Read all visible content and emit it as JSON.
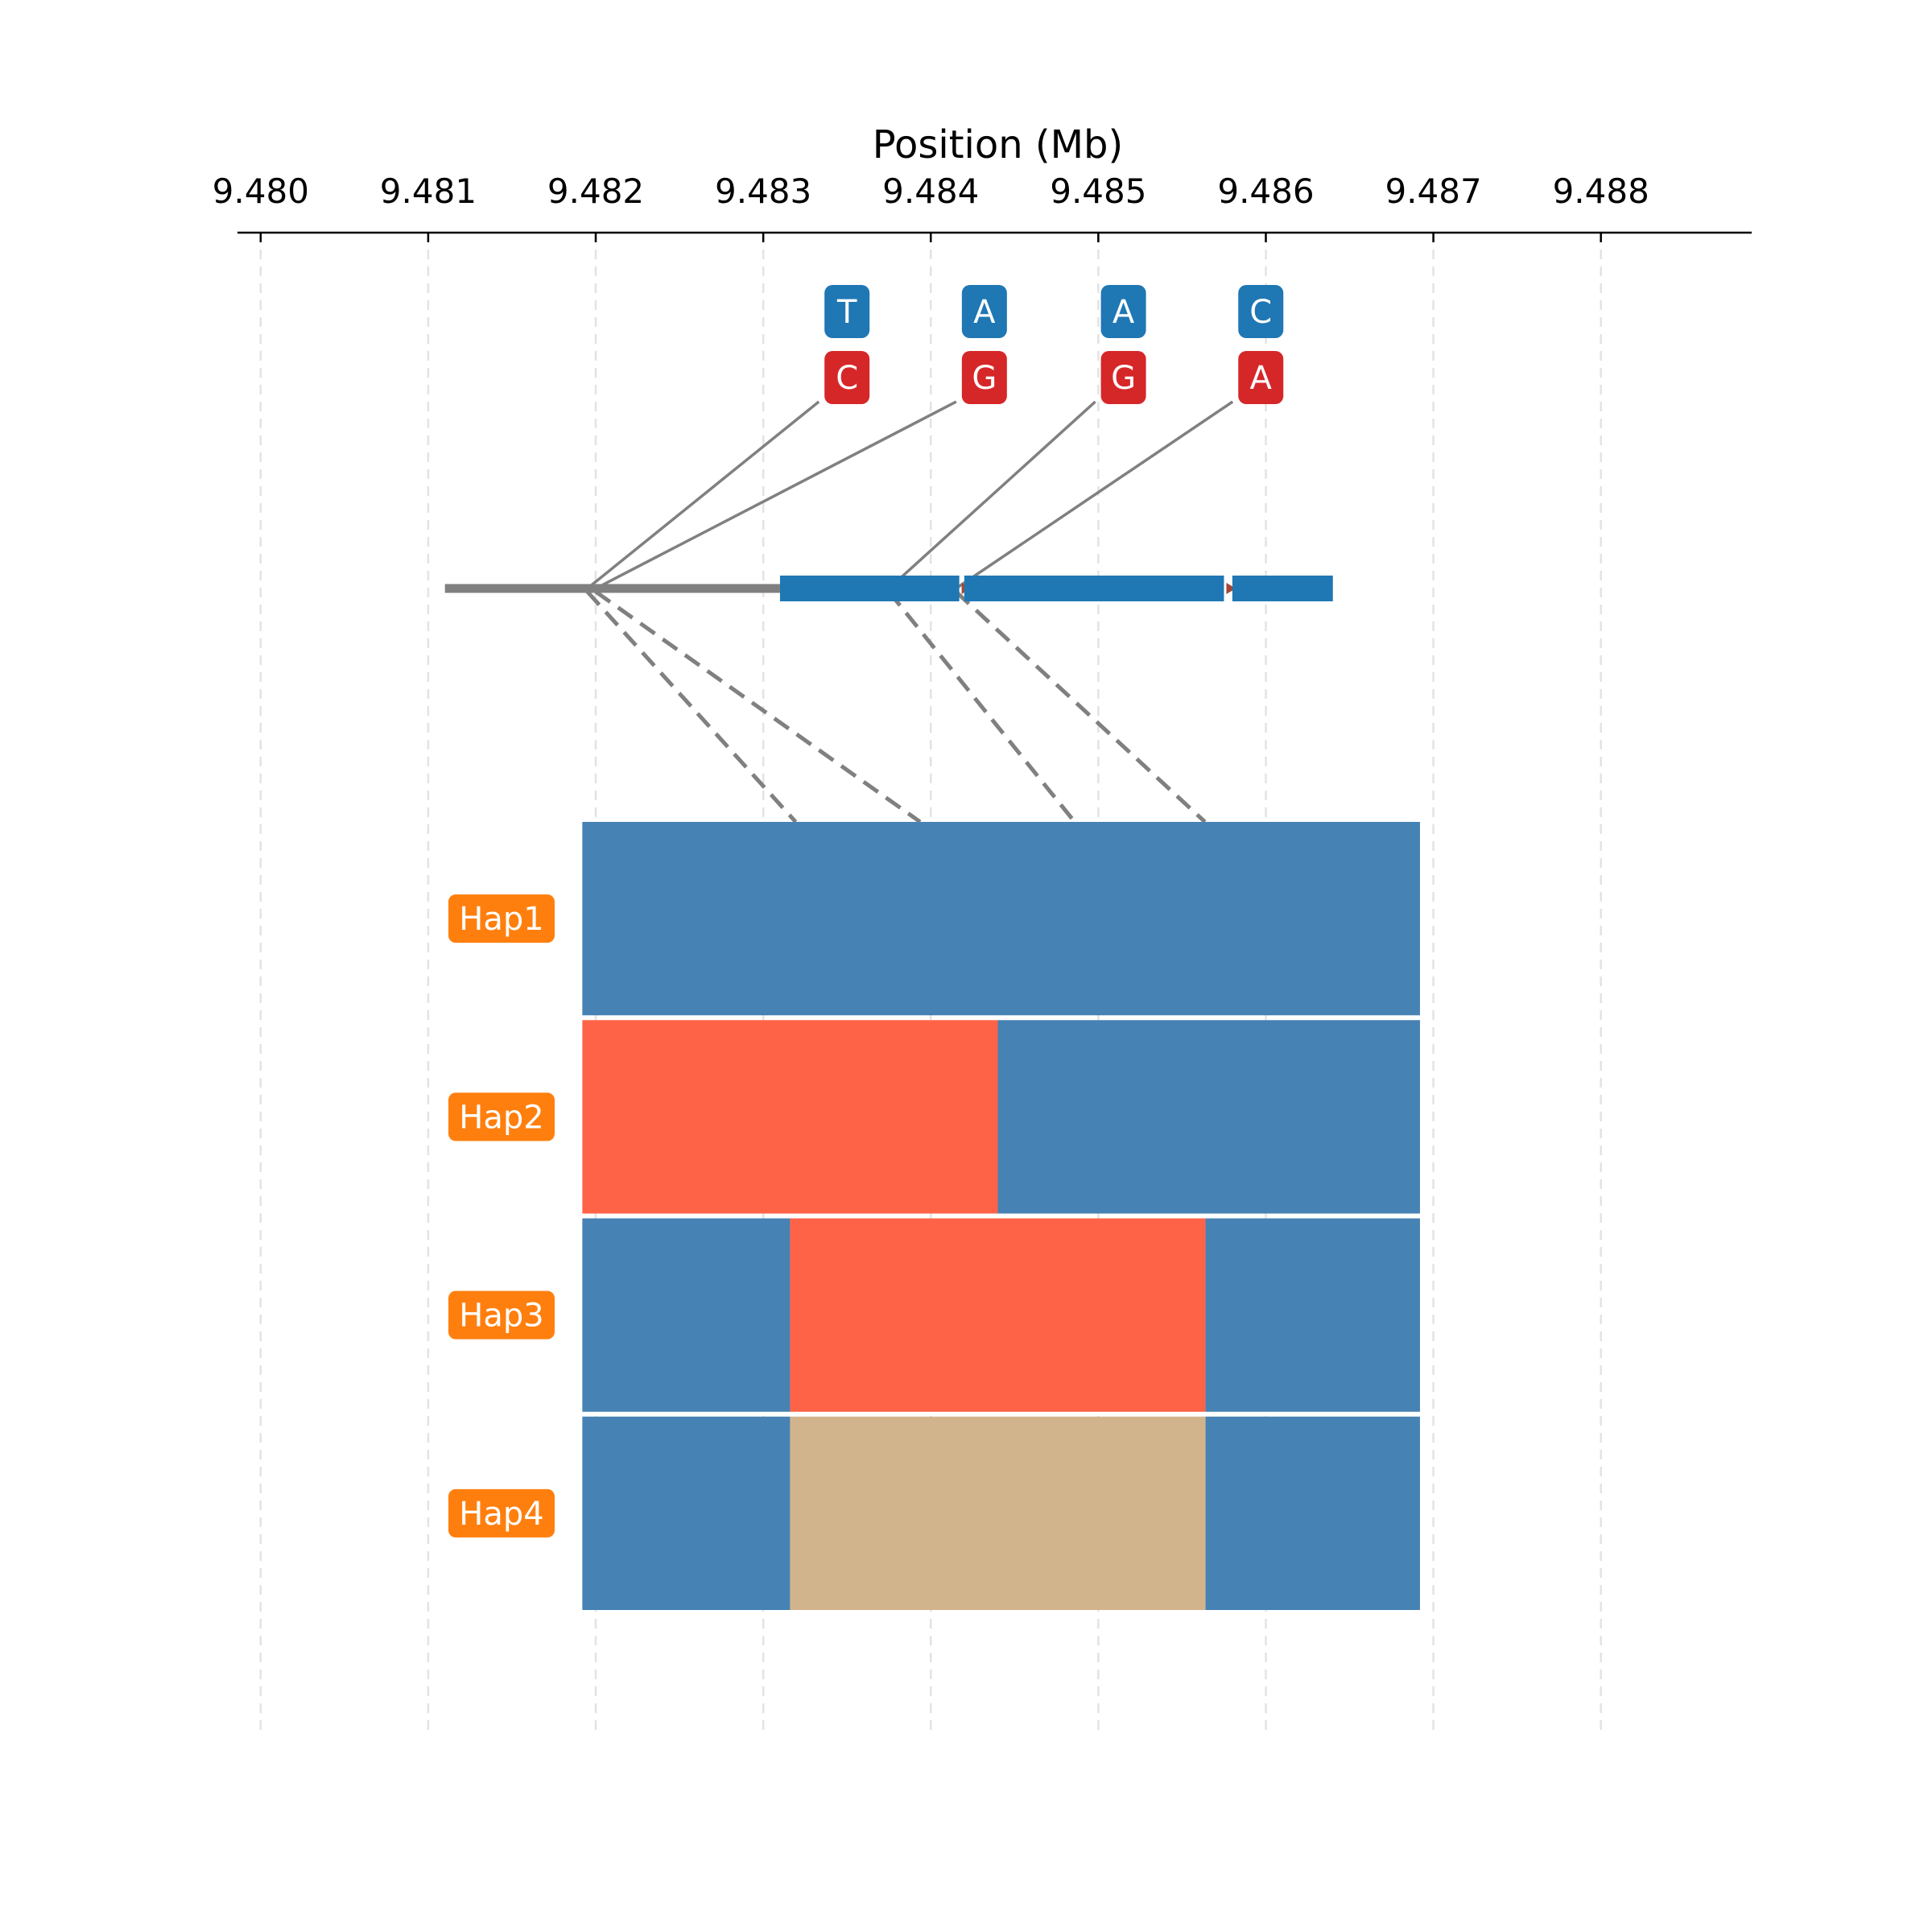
{
  "chart_data": {
    "type": "haplotype",
    "xlabel": "Position (Mb)",
    "xlim": [
      9.4799,
      9.4889
    ],
    "ticks": [
      "9.480",
      "9.481",
      "9.482",
      "9.483",
      "9.484",
      "9.485",
      "9.486",
      "9.487",
      "9.488"
    ],
    "tick_values": [
      9.48,
      9.481,
      9.482,
      9.483,
      9.484,
      9.485,
      9.486,
      9.487,
      9.488
    ],
    "grid": true,
    "gene": {
      "start": 9.4811,
      "end": 9.4864,
      "line_color": "#808080",
      "exon_color": "#1f77b4",
      "exons": [
        {
          "start": 9.4831,
          "end": 9.48417
        },
        {
          "start": 9.4842,
          "end": 9.48575
        },
        {
          "start": 9.4858,
          "end": 9.4864
        }
      ]
    },
    "variants": [
      {
        "pos": 9.4835,
        "ref": "T",
        "alt": "C",
        "gene_anchor": 9.48195
      },
      {
        "pos": 9.48432,
        "ref": "A",
        "alt": "G",
        "gene_anchor": 9.482
      },
      {
        "pos": 9.48515,
        "ref": "A",
        "alt": "G",
        "gene_anchor": 9.48375
      },
      {
        "pos": 9.48597,
        "ref": "C",
        "alt": "A",
        "gene_anchor": 9.48415
      }
    ],
    "ref_color": "#1f77b4",
    "alt_color": "#d62728",
    "haplotypes": [
      {
        "name": "Hap1",
        "segments": [
          {
            "end": 9.48692,
            "color": "#4682b4"
          }
        ]
      },
      {
        "name": "Hap2",
        "segments": [
          {
            "end": 9.4844,
            "color": "#ff6347"
          },
          {
            "end": 9.48692,
            "color": "#4682b4"
          }
        ]
      },
      {
        "name": "Hap3",
        "segments": [
          {
            "end": 9.48316,
            "color": "#4682b4"
          },
          {
            "end": 9.48564,
            "color": "#ff6347"
          },
          {
            "end": 9.48692,
            "color": "#4682b4"
          }
        ]
      },
      {
        "name": "Hap4",
        "segments": [
          {
            "end": 9.48316,
            "color": "#4682b4"
          },
          {
            "end": 9.48564,
            "color": "#d2b48c"
          },
          {
            "end": 9.48692,
            "color": "#4682b4"
          }
        ]
      }
    ],
    "hap_start": 9.48192,
    "hap_label_color": "#ff7f0e",
    "connector_color": "#808080"
  }
}
